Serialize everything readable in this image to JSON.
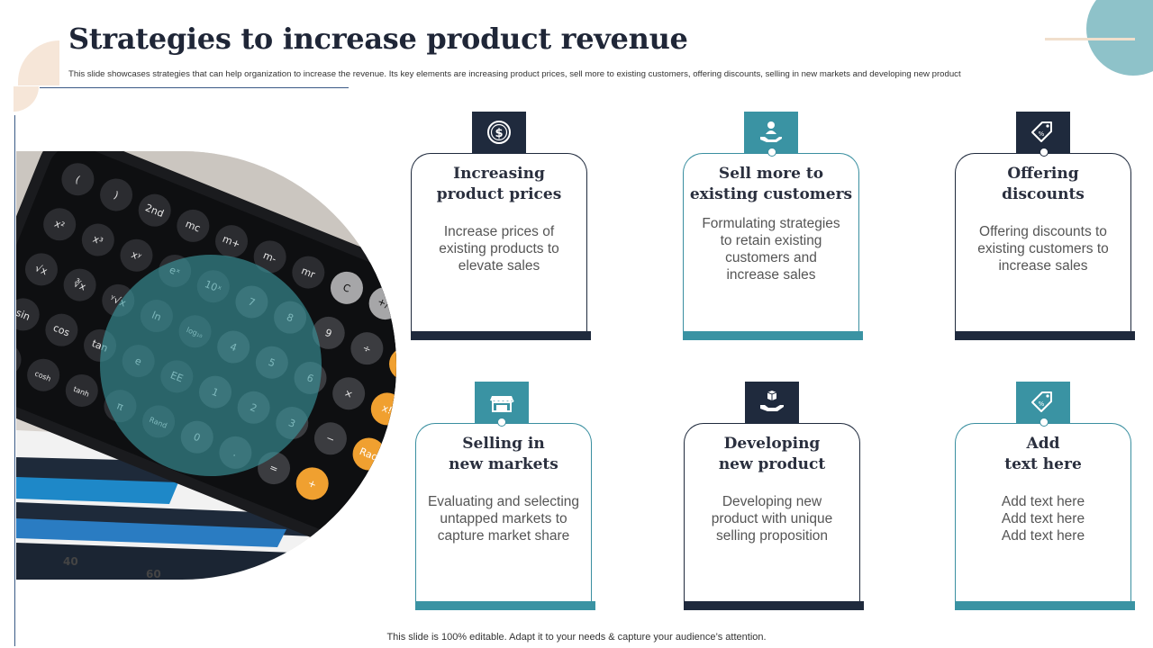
{
  "header": {
    "title": "Strategies to increase product revenue",
    "subtitle": "This slide showcases strategies that can help organization to increase the revenue. Its key elements are increasing product prices, sell more to existing customers, offering discounts, selling in new markets and developing new  product"
  },
  "footer": {
    "text": "This slide is 100% editable. Adapt it to your needs & capture your audience’s attention."
  },
  "colors": {
    "navy": "#1f2a3d",
    "teal": "#3a93a3",
    "peach": "#f6e6d8"
  },
  "cards": [
    {
      "title_line1": "Increasing",
      "title_line2": "product prices",
      "desc": [
        "Increase prices of",
        "existing products to",
        "elevate sales"
      ],
      "icon": "dollar-coin-icon"
    },
    {
      "title_line1": "Sell more to",
      "title_line2": "existing customers",
      "desc": [
        "Formulating strategies",
        "to retain existing",
        "customers and",
        "increase sales"
      ],
      "icon": "hand-customer-icon"
    },
    {
      "title_line1": "Offering",
      "title_line2": "discounts",
      "desc": [
        "Offering discounts to",
        "existing customers to",
        "increase sales"
      ],
      "icon": "discount-tag-icon"
    },
    {
      "title_line1": "Selling in",
      "title_line2": "new markets",
      "desc": [
        "Evaluating and selecting",
        "untapped markets to",
        "capture market share"
      ],
      "icon": "storefront-icon"
    },
    {
      "title_line1": "Developing",
      "title_line2": "new product",
      "desc": [
        "Developing new",
        "product with unique",
        "selling proposition"
      ],
      "icon": "hand-box-icon"
    },
    {
      "title_line1": "Add",
      "title_line2": "text here",
      "desc": [
        "Add text here",
        "Add text here",
        "Add text here"
      ],
      "icon": "price-tag-icon"
    }
  ],
  "photo": {
    "description_icon": "calculator-photo",
    "keys": [
      "(",
      ")",
      "2nd",
      "mc",
      "m+",
      "m-",
      "mr",
      "C",
      "+/-",
      "%",
      "x²",
      "x³",
      "xʸ",
      "eˣ",
      "10ˣ",
      "7",
      "8",
      "9",
      "÷",
      "¹/x",
      "√x",
      "∛x",
      "ʸ√x",
      "ln",
      "log₁₀",
      "4",
      "5",
      "6",
      "×",
      "x!",
      "sin",
      "cos",
      "tan",
      "e",
      "EE",
      "1",
      "2",
      "3",
      "−",
      "Rad",
      "sinh",
      "cosh",
      "tanh",
      "π",
      "Rand",
      "0",
      ".",
      "=",
      "+"
    ],
    "axis_labels": [
      "40",
      "60"
    ]
  }
}
